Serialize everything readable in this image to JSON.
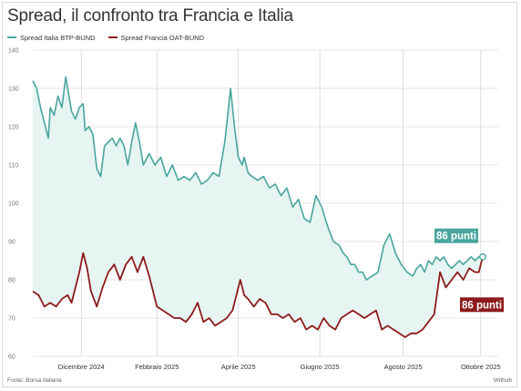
{
  "title": "Spread, il confronto tra Francia e Italia",
  "source": "Fonte: Borsa italiana",
  "credit": "Withub",
  "chart_data": {
    "type": "line",
    "ylim": [
      60,
      140
    ],
    "yticks": [
      60,
      70,
      80,
      90,
      100,
      110,
      120,
      130,
      140
    ],
    "grid": true,
    "legend_position": "top-left",
    "x_tick_labels": [
      "Dicembre 2024",
      "Febbraio 2025",
      "Aprile 2025",
      "Giugno 2025",
      "Agosto 2025",
      "Ottobre 2025"
    ],
    "x_tick_positions": [
      25,
      64,
      106,
      148,
      191,
      231
    ],
    "x_range": [
      0,
      240
    ],
    "series": [
      {
        "name": "Spread Italia BTP-BUND",
        "color": "#4aa59e",
        "fill": "#e6f4f2",
        "end_label": "86 punti",
        "x": [
          0,
          2,
          4,
          6,
          8,
          9,
          11,
          13,
          15,
          17,
          19,
          20,
          22,
          24,
          26,
          27,
          29,
          31,
          33,
          35,
          37,
          39,
          41,
          43,
          45,
          47,
          49,
          51,
          53,
          55,
          57,
          60,
          63,
          66,
          69,
          72,
          75,
          78,
          81,
          84,
          87,
          90,
          93,
          96,
          99,
          102,
          104,
          106,
          108,
          109,
          111,
          113,
          116,
          119,
          122,
          125,
          128,
          131,
          134,
          137,
          140,
          143,
          146,
          149,
          152,
          155,
          158,
          160,
          162,
          164,
          166,
          168,
          170,
          172,
          175,
          178,
          181,
          184,
          187,
          190,
          193,
          196,
          198,
          200,
          202,
          204,
          206,
          208,
          210,
          212,
          214,
          216,
          218,
          220,
          222,
          224,
          226,
          228,
          230,
          232
        ],
        "values": [
          132,
          130,
          125,
          121,
          117,
          125,
          123,
          128,
          125,
          133,
          127,
          124,
          122,
          125,
          126,
          119,
          120,
          118,
          109,
          107,
          115,
          116,
          117,
          115,
          117,
          115,
          110,
          116,
          121,
          116,
          110,
          113,
          110,
          112,
          107,
          110,
          106,
          107,
          106,
          108,
          105,
          106,
          108,
          107,
          116,
          130,
          120,
          112,
          110,
          112,
          108,
          107,
          106,
          107,
          104,
          105,
          102,
          104,
          99,
          101,
          96,
          95,
          102,
          99,
          94,
          90,
          89,
          87,
          86,
          84,
          84,
          82,
          82,
          80,
          81,
          82,
          89,
          92,
          87,
          84,
          82,
          81,
          83,
          84,
          82,
          85,
          84,
          86,
          85,
          86,
          84,
          83,
          84,
          85,
          84,
          85,
          86,
          85,
          86,
          86
        ]
      },
      {
        "name": "Spread Francia OAT-BUND",
        "color": "#8c1b1b",
        "end_label": "86 punti",
        "x": [
          0,
          3,
          6,
          9,
          12,
          15,
          18,
          20,
          22,
          24,
          26,
          28,
          30,
          33,
          36,
          39,
          42,
          45,
          48,
          51,
          54,
          57,
          60,
          62,
          64,
          67,
          70,
          73,
          76,
          79,
          82,
          85,
          88,
          91,
          94,
          97,
          100,
          103,
          105,
          107,
          109,
          111,
          114,
          117,
          120,
          123,
          126,
          129,
          132,
          135,
          138,
          141,
          144,
          147,
          150,
          153,
          156,
          159,
          162,
          165,
          168,
          171,
          174,
          177,
          180,
          183,
          186,
          189,
          192,
          195,
          198,
          201,
          204,
          207,
          210,
          213,
          216,
          219,
          222,
          225,
          228,
          230,
          232
        ],
        "values": [
          77,
          76,
          73,
          74,
          73,
          75,
          76,
          74,
          78,
          82,
          87,
          83,
          77,
          73,
          78,
          82,
          84,
          80,
          84,
          86,
          82,
          86,
          81,
          77,
          73,
          72,
          71,
          70,
          70,
          69,
          71,
          74,
          69,
          70,
          68,
          69,
          70,
          72,
          76,
          80,
          76,
          75,
          73,
          75,
          74,
          71,
          71,
          70,
          71,
          69,
          70,
          67,
          68,
          67,
          70,
          68,
          67,
          70,
          71,
          72,
          71,
          70,
          71,
          72,
          67,
          68,
          67,
          66,
          65,
          66,
          66,
          67,
          69,
          71,
          82,
          78,
          80,
          82,
          80,
          83,
          82,
          82,
          86
        ]
      }
    ]
  }
}
